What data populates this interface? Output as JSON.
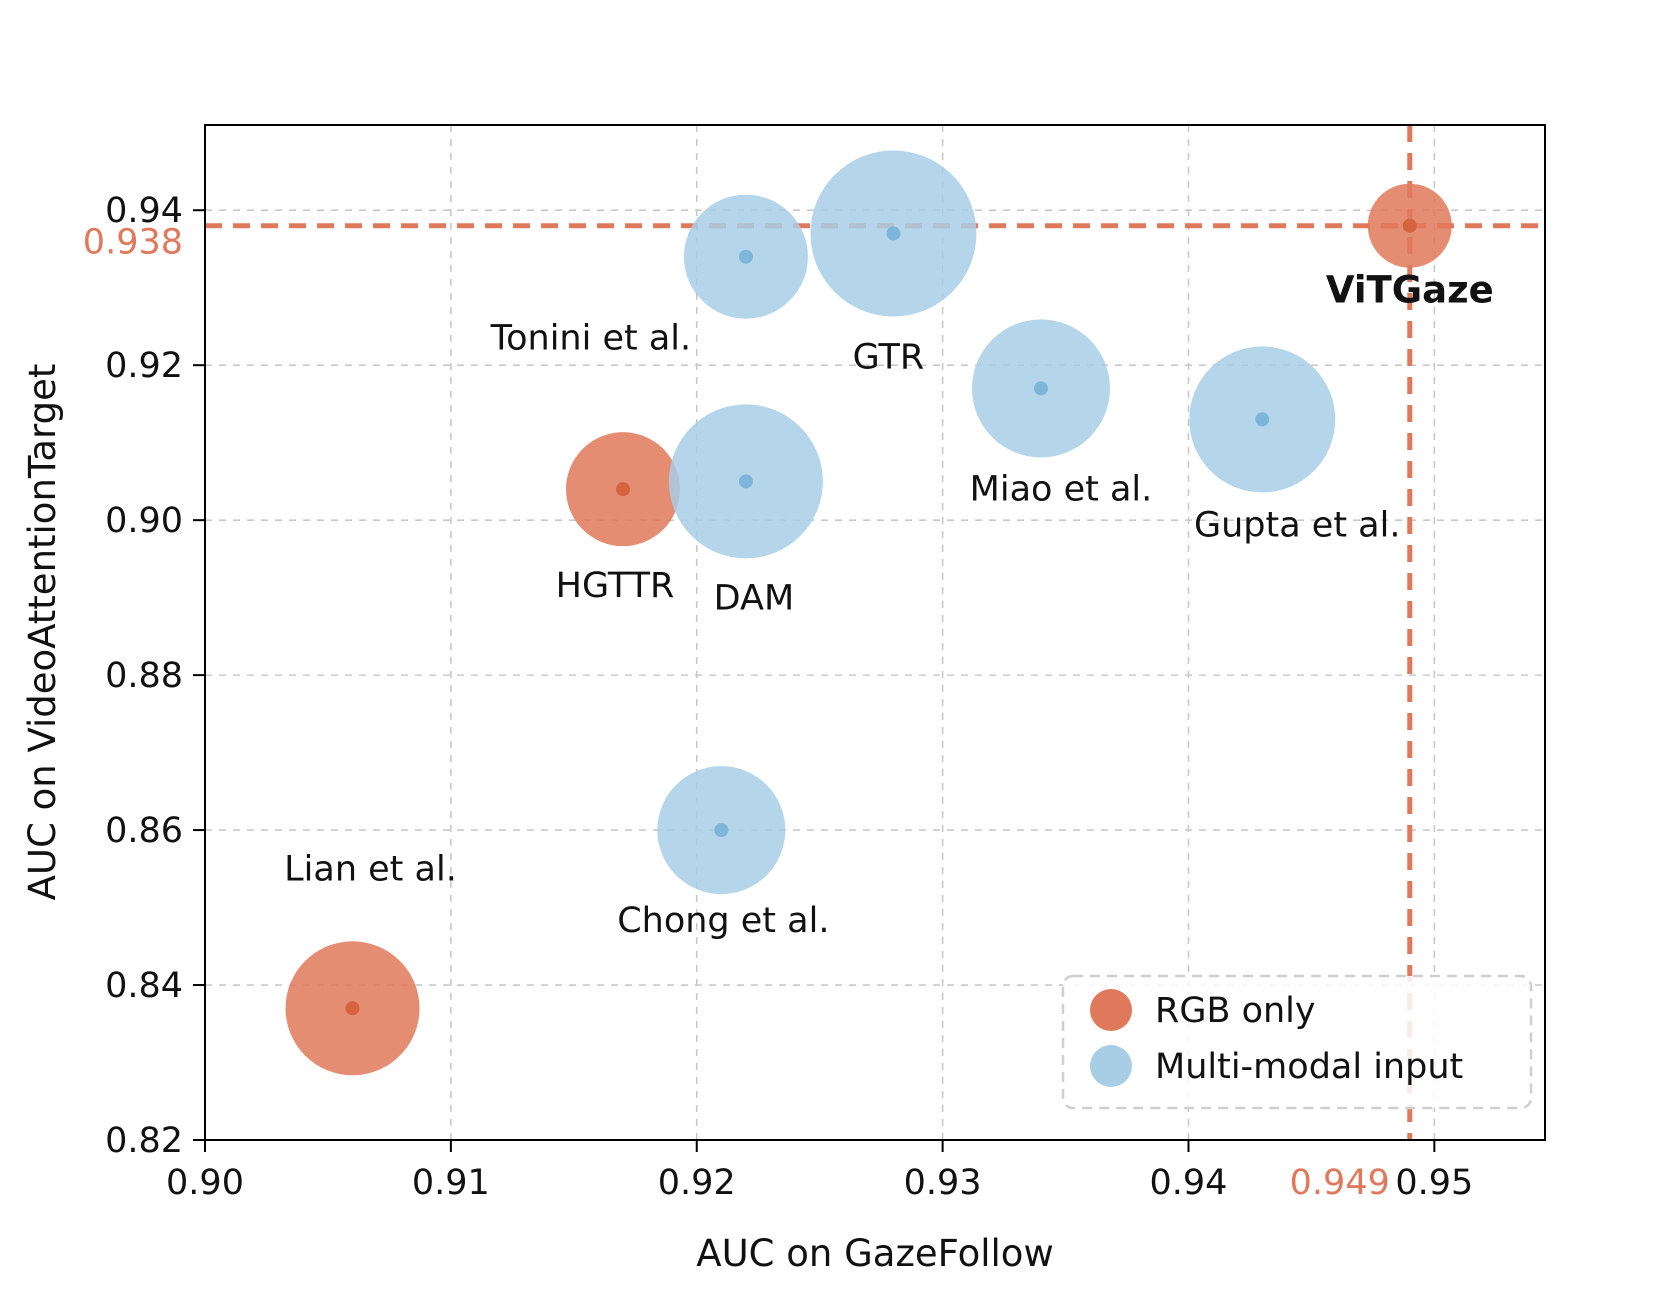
{
  "chart_data": {
    "type": "scatter",
    "title": "",
    "xlabel": "AUC on GazeFollow",
    "ylabel": "AUC on VideoAttentionTarget",
    "xlim": [
      0.9,
      0.9545
    ],
    "ylim": [
      0.82,
      0.951
    ],
    "x_ticks": [
      0.9,
      0.91,
      0.92,
      0.93,
      0.94,
      0.95
    ],
    "y_ticks": [
      0.82,
      0.84,
      0.86,
      0.88,
      0.9,
      0.92,
      0.94
    ],
    "grid": true,
    "highlight": {
      "x": 0.949,
      "y": 0.938,
      "x_label": "0.949",
      "y_label": "0.938",
      "color": "#E0795B"
    },
    "series": [
      {
        "name": "RGB only",
        "color": "#E0795B",
        "dot_color": "#D4633E",
        "points": [
          {
            "label": "Lian et al.",
            "x": 0.906,
            "y": 0.837,
            "r": 67,
            "label_dx": 18,
            "label_dy": -128,
            "bold": false
          },
          {
            "label": "HGTTR",
            "x": 0.917,
            "y": 0.904,
            "r": 57,
            "label_dx": -8,
            "label_dy": 108,
            "bold": false
          },
          {
            "label": "ViTGaze",
            "x": 0.949,
            "y": 0.938,
            "r": 42,
            "label_dx": 0,
            "label_dy": 77,
            "bold": true
          }
        ]
      },
      {
        "name": "Multi-modal input",
        "color": "#A8CEE6",
        "dot_color": "#7EB6D9",
        "points": [
          {
            "label": "Tonini et al.",
            "x": 0.922,
            "y": 0.934,
            "r": 62,
            "label_dx": -155,
            "label_dy": 93,
            "bold": false
          },
          {
            "label": "DAM",
            "x": 0.922,
            "y": 0.905,
            "r": 77,
            "label_dx": 8,
            "label_dy": 128,
            "bold": false
          },
          {
            "label": "GTR",
            "x": 0.928,
            "y": 0.937,
            "r": 83,
            "label_dx": -5,
            "label_dy": 135,
            "bold": false
          },
          {
            "label": "Chong et al.",
            "x": 0.921,
            "y": 0.86,
            "r": 64,
            "label_dx": 2,
            "label_dy": 102,
            "bold": false
          },
          {
            "label": "Miao et al.",
            "x": 0.934,
            "y": 0.917,
            "r": 69,
            "label_dx": 20,
            "label_dy": 112,
            "bold": false
          },
          {
            "label": "Gupta et al.",
            "x": 0.943,
            "y": 0.913,
            "r": 73,
            "label_dx": 35,
            "label_dy": 117,
            "bold": false
          }
        ]
      }
    ],
    "legend": {
      "position": "lower right",
      "items": [
        {
          "label": "RGB only",
          "color": "#E0795B"
        },
        {
          "label": "Multi-modal input",
          "color": "#A8CEE6"
        }
      ]
    }
  }
}
